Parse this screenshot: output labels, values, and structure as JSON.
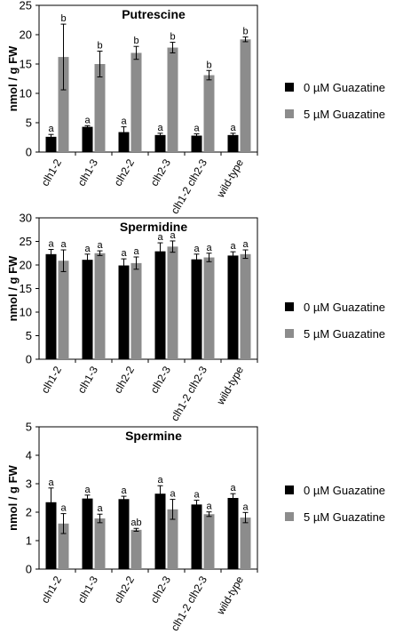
{
  "colors": {
    "series0": "#000000",
    "series1": "#8c8c8c",
    "error": "#000000",
    "axis": "#000000"
  },
  "chart_data": [
    {
      "type": "bar",
      "title": "Putrescine",
      "ylabel": "nmol / g FW",
      "ylim": [
        0,
        25
      ],
      "yticks": [
        0,
        5,
        10,
        15,
        20,
        25
      ],
      "legend": "right",
      "categories": [
        "clh1-2",
        "clh1-3",
        "clh2-2",
        "clh2-3",
        "clh1-2 clh2-3",
        "wild-type"
      ],
      "series": [
        {
          "name": "0 µM Guazatine",
          "values": [
            2.6,
            4.3,
            3.4,
            2.9,
            2.8,
            2.9
          ],
          "errors": [
            0.4,
            0.2,
            0.9,
            0.3,
            0.3,
            0.3
          ],
          "letters": [
            "a",
            "a",
            "a",
            "a",
            "a",
            "a"
          ]
        },
        {
          "name": "5 µM Guazatine",
          "values": [
            16.2,
            15.0,
            16.9,
            17.8,
            13.1,
            19.2
          ],
          "errors": [
            5.6,
            2.2,
            1.1,
            0.9,
            0.8,
            0.4
          ],
          "letters": [
            "b",
            "b",
            "b",
            "b",
            "b",
            "b"
          ]
        }
      ]
    },
    {
      "type": "bar",
      "title": "Spermidine",
      "ylabel": "nmol / g FW",
      "ylim": [
        0,
        30
      ],
      "yticks": [
        0,
        5,
        10,
        15,
        20,
        25,
        30
      ],
      "legend": "right",
      "categories": [
        "clh1-2",
        "clh1-3",
        "clh2-2",
        "clh2-3",
        "clh1-2 clh2-3",
        "wild-type"
      ],
      "series": [
        {
          "name": "0 µM Guazatine",
          "values": [
            22.3,
            21.1,
            19.9,
            22.9,
            21.2,
            22.0
          ],
          "errors": [
            1.0,
            1.2,
            1.4,
            1.8,
            1.1,
            0.8
          ],
          "letters": [
            "a",
            "a",
            "a",
            "a",
            "a",
            "a"
          ]
        },
        {
          "name": "5 µM Guazatine",
          "values": [
            20.9,
            22.5,
            20.4,
            23.9,
            21.6,
            22.3
          ],
          "errors": [
            2.3,
            0.5,
            1.3,
            1.2,
            0.9,
            0.9
          ],
          "letters": [
            "a",
            "a",
            "a",
            "a",
            "a",
            "a"
          ]
        }
      ]
    },
    {
      "type": "bar",
      "title": "Spermine",
      "ylabel": "nmol / g FW",
      "ylim": [
        0,
        5
      ],
      "yticks": [
        0,
        1,
        2,
        3,
        4,
        5
      ],
      "legend": "right",
      "categories": [
        "clh1-2",
        "clh1-3",
        "clh2-2",
        "clh2-3",
        "clh1-2 clh2-3",
        "wild-type"
      ],
      "series": [
        {
          "name": "0 µM Guazatine",
          "values": [
            2.35,
            2.48,
            2.46,
            2.65,
            2.27,
            2.5
          ],
          "errors": [
            0.5,
            0.12,
            0.1,
            0.28,
            0.15,
            0.15
          ],
          "letters": [
            "a",
            "a",
            "a",
            "a",
            "a",
            "a"
          ]
        },
        {
          "name": "5 µM Guazatine",
          "values": [
            1.6,
            1.78,
            1.38,
            2.1,
            1.93,
            1.81
          ],
          "errors": [
            0.35,
            0.15,
            0.05,
            0.35,
            0.08,
            0.18
          ],
          "letters": [
            "a",
            "a",
            "ab",
            "a",
            "a",
            "a"
          ]
        }
      ]
    }
  ]
}
